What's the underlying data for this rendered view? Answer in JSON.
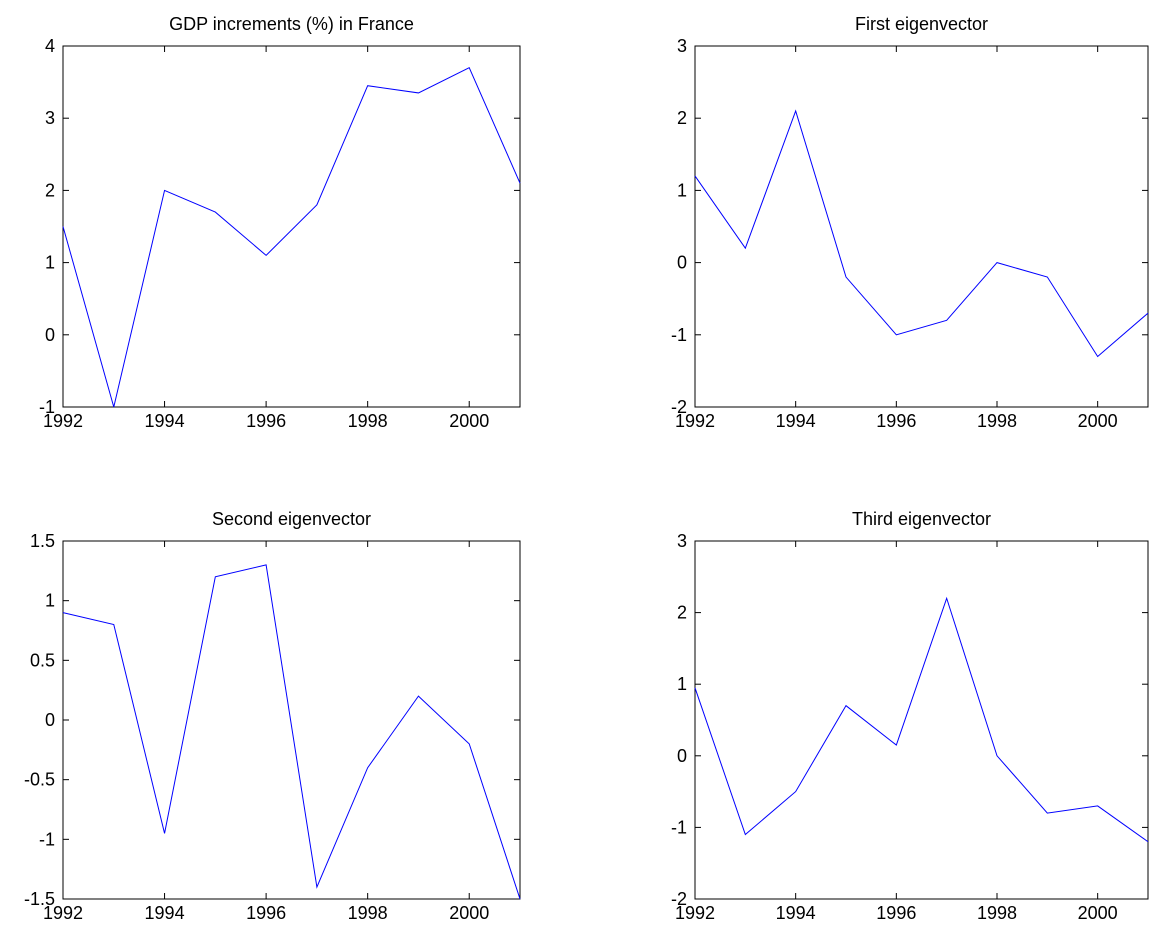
{
  "chart_data": [
    {
      "type": "line",
      "title": "GDP increments (%) in France",
      "x": [
        1992,
        1993,
        1994,
        1995,
        1996,
        1997,
        1998,
        1999,
        2000,
        2001
      ],
      "series": [
        {
          "color": "#0000ff",
          "values": [
            1.5,
            -1,
            2.0,
            1.7,
            1.1,
            1.8,
            3.45,
            3.35,
            3.7,
            2.1
          ]
        }
      ],
      "xlim": [
        1992,
        2001
      ],
      "xticks": [
        1992,
        1994,
        1996,
        1998,
        2000
      ],
      "ylim": [
        -1,
        4
      ],
      "yticks": [
        -1,
        0,
        1,
        2,
        3,
        4
      ]
    },
    {
      "type": "line",
      "title": "First eigenvector",
      "x": [
        1992,
        1993,
        1994,
        1995,
        1996,
        1997,
        1998,
        1999,
        2000,
        2001
      ],
      "series": [
        {
          "color": "#0000ff",
          "values": [
            1.2,
            0.2,
            2.1,
            -0.2,
            -1.0,
            -0.8,
            0.0,
            -0.2,
            -1.3,
            -0.7
          ]
        }
      ],
      "xlim": [
        1992,
        2001
      ],
      "xticks": [
        1992,
        1994,
        1996,
        1998,
        2000
      ],
      "ylim": [
        -2,
        3
      ],
      "yticks": [
        -2,
        -1,
        0,
        1,
        2,
        3
      ]
    },
    {
      "type": "line",
      "title": "Second eigenvector",
      "x": [
        1992,
        1993,
        1994,
        1995,
        1996,
        1997,
        1998,
        1999,
        2000,
        2001
      ],
      "series": [
        {
          "color": "#0000ff",
          "values": [
            0.9,
            0.8,
            -0.95,
            1.2,
            1.3,
            -1.4,
            -0.4,
            0.2,
            -0.2,
            -1.5
          ]
        }
      ],
      "xlim": [
        1992,
        2001
      ],
      "xticks": [
        1992,
        1994,
        1996,
        1998,
        2000
      ],
      "ylim": [
        -1.5,
        1.5
      ],
      "yticks": [
        -1.5,
        -1,
        -0.5,
        0,
        0.5,
        1,
        1.5
      ]
    },
    {
      "type": "line",
      "title": "Third eigenvector",
      "x": [
        1992,
        1993,
        1994,
        1995,
        1996,
        1997,
        1998,
        1999,
        2000,
        2001
      ],
      "series": [
        {
          "color": "#0000ff",
          "values": [
            0.95,
            -1.1,
            -0.5,
            0.7,
            0.15,
            2.2,
            0.0,
            -0.8,
            -0.7,
            -1.2
          ]
        }
      ],
      "xlim": [
        1992,
        2001
      ],
      "xticks": [
        1992,
        1994,
        1996,
        1998,
        2000
      ],
      "ylim": [
        -2,
        3
      ],
      "yticks": [
        -2,
        -1,
        0,
        1,
        2,
        3
      ]
    }
  ]
}
